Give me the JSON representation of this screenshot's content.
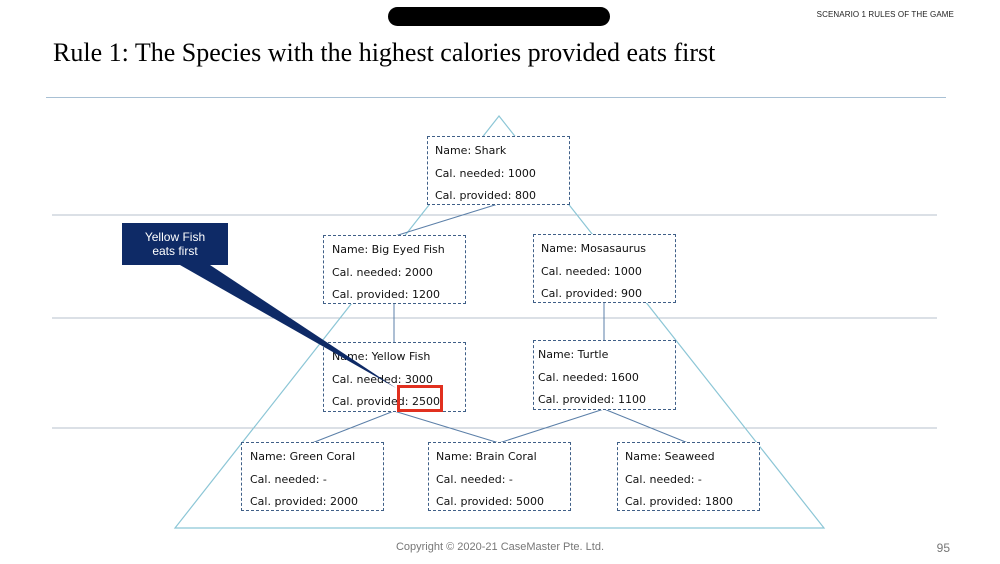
{
  "header": {
    "tag": "SCENARIO 1 RULES OF THE GAME",
    "title": "Rule 1: The Species with the highest calories provided eats first"
  },
  "callout": {
    "line1": "Yellow Fish",
    "line2": "eats first"
  },
  "nodes": {
    "shark": {
      "name": "Name: Shark",
      "needed": "Cal. needed: 1000",
      "provided": "Cal. provided: 800"
    },
    "big_eyed_fish": {
      "name": "Name: Big Eyed Fish",
      "needed": "Cal. needed: 2000",
      "provided": "Cal. provided: 1200"
    },
    "mosasaurus": {
      "name": "Name: Mosasaurus",
      "needed": "Cal. needed: 1000",
      "provided": "Cal. provided: 900"
    },
    "yellow_fish": {
      "name": "Name: Yellow Fish",
      "needed": "Cal. needed: 3000",
      "provided_label": "Cal. provided:",
      "provided_value": "2500"
    },
    "turtle": {
      "name": "Name: Turtle",
      "needed": "Cal. needed: 1600",
      "provided": "Cal. provided: 1100"
    },
    "green_coral": {
      "name": "Name: Green Coral",
      "needed": "Cal. needed: -",
      "provided": "Cal. provided: 2000"
    },
    "brain_coral": {
      "name": "Name: Brain Coral",
      "needed": "Cal. needed: -",
      "provided": "Cal. provided: 5000"
    },
    "seaweed": {
      "name": "Name: Seaweed",
      "needed": "Cal. needed: -",
      "provided": "Cal. provided: 1800"
    }
  },
  "footer": {
    "copyright": "Copyright © 2020-21 CaseMaster Pte. Ltd.",
    "page": "95"
  },
  "colors": {
    "node_border": "#3f5f87",
    "triangle": "#8cc6d6",
    "callout_bg": "#0e2a66",
    "highlight": "#e1301f"
  }
}
